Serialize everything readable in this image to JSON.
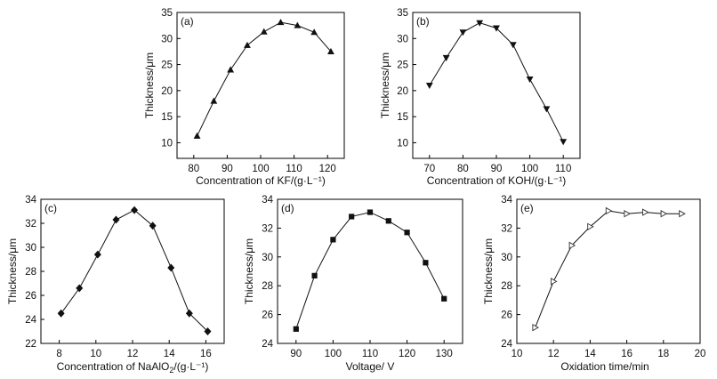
{
  "chart_data": [
    {
      "type": "line",
      "panel": "(a)",
      "xlabel": "Concentration of KF/(g·L⁻¹)",
      "ylabel": "Thickness/μm",
      "x": [
        81,
        86,
        91,
        96,
        101,
        106,
        111,
        116,
        121
      ],
      "values": [
        11.3,
        18.0,
        24.0,
        28.7,
        31.3,
        33.1,
        32.5,
        31.2,
        27.5
      ],
      "xlim": [
        75,
        125
      ],
      "ylim": [
        7,
        35
      ],
      "xticks": [
        80,
        90,
        100,
        110,
        120
      ],
      "yticks": [
        10,
        15,
        20,
        25,
        30,
        35
      ],
      "marker": "triangle-up"
    },
    {
      "type": "line",
      "panel": "(b)",
      "xlabel": "Concentration of KOH/(g·L⁻¹)",
      "ylabel": "Thickness/μm",
      "x": [
        70,
        75,
        80,
        85,
        90,
        95,
        100,
        105,
        110
      ],
      "values": [
        21.0,
        26.3,
        31.2,
        33.0,
        32.0,
        28.8,
        22.2,
        16.5,
        10.2
      ],
      "xlim": [
        65,
        115
      ],
      "ylim": [
        7,
        35
      ],
      "xticks": [
        70,
        80,
        90,
        100,
        110
      ],
      "yticks": [
        10,
        15,
        20,
        25,
        30,
        35
      ],
      "marker": "triangle-down"
    },
    {
      "type": "line",
      "panel": "(c)",
      "xlabel_main": "Concentration of NaAlO",
      "xlabel_sub": "2",
      "xlabel_rest": "/(g·L⁻¹)",
      "ylabel": "Thickness/μm",
      "x": [
        8.1,
        9.1,
        10.1,
        11.1,
        12.1,
        13.1,
        14.1,
        15.1,
        16.1
      ],
      "values": [
        24.5,
        26.6,
        29.4,
        32.3,
        33.1,
        31.8,
        28.3,
        24.5,
        23.0
      ],
      "xlim": [
        7,
        17
      ],
      "ylim": [
        22,
        34
      ],
      "xticks": [
        8,
        10,
        12,
        14,
        16
      ],
      "yticks": [
        22,
        24,
        26,
        28,
        30,
        32,
        34
      ],
      "marker": "diamond"
    },
    {
      "type": "line",
      "panel": "(d)",
      "xlabel": "Voltage/ V",
      "ylabel": "Thickness/μm",
      "x": [
        90,
        95,
        100,
        105,
        110,
        115,
        120,
        125,
        130
      ],
      "values": [
        25.0,
        28.7,
        31.2,
        32.8,
        33.1,
        32.5,
        31.7,
        29.6,
        27.1
      ],
      "xlim": [
        85,
        135
      ],
      "ylim": [
        24,
        34
      ],
      "xticks": [
        90,
        100,
        110,
        120,
        130
      ],
      "yticks": [
        24,
        26,
        28,
        30,
        32,
        34
      ],
      "marker": "square"
    },
    {
      "type": "line",
      "panel": "(e)",
      "xlabel": "Oxidation time/min",
      "ylabel": "Thickness/μm",
      "x": [
        11,
        12,
        13,
        14,
        15,
        16,
        17,
        18,
        19
      ],
      "values": [
        25.1,
        28.3,
        30.8,
        32.1,
        33.2,
        33.0,
        33.1,
        33.0,
        33.0
      ],
      "xlim": [
        10,
        20
      ],
      "ylim": [
        24,
        34
      ],
      "xticks": [
        10,
        12,
        14,
        16,
        18,
        20
      ],
      "yticks": [
        24,
        26,
        28,
        30,
        32,
        34
      ],
      "marker": "triangle-right-open"
    }
  ]
}
